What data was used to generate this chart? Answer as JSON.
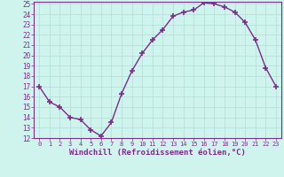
{
  "x": [
    0,
    1,
    2,
    3,
    4,
    5,
    6,
    7,
    8,
    9,
    10,
    11,
    12,
    13,
    14,
    15,
    16,
    17,
    18,
    19,
    20,
    21,
    22,
    23
  ],
  "y": [
    17,
    15.5,
    15,
    14,
    13.8,
    12.8,
    12.2,
    13.5,
    16.3,
    18.5,
    20.2,
    21.5,
    22.5,
    23.8,
    24.2,
    24.4,
    25.1,
    25.0,
    24.7,
    24.2,
    23.2,
    21.5,
    18.8,
    17
  ],
  "line_color": "#7B2D8B",
  "marker": "+",
  "markersize": 4,
  "markeredgewidth": 1.2,
  "linewidth": 1.0,
  "xlabel": "Windchill (Refroidissement éolien,°C)",
  "xlabel_fontsize": 6.5,
  "bg_color": "#cff4ee",
  "grid_color": "#b2ddd7",
  "tick_color": "#7B2D8B",
  "label_color": "#7B2D8B",
  "ylim": [
    12,
    25
  ],
  "xlim": [
    -0.5,
    23.5
  ],
  "yticks": [
    12,
    13,
    14,
    15,
    16,
    17,
    18,
    19,
    20,
    21,
    22,
    23,
    24,
    25
  ],
  "xticks": [
    0,
    1,
    2,
    3,
    4,
    5,
    6,
    7,
    8,
    9,
    10,
    11,
    12,
    13,
    14,
    15,
    16,
    17,
    18,
    19,
    20,
    21,
    22,
    23
  ],
  "ytick_fontsize": 5.5,
  "xtick_fontsize": 5.0
}
